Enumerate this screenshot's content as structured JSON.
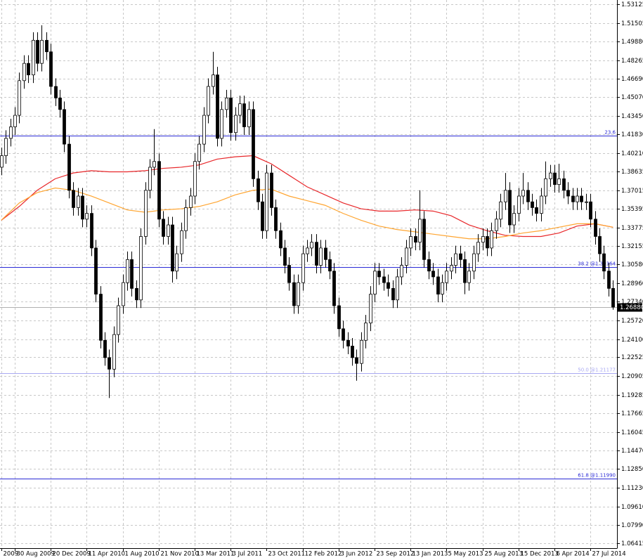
{
  "chart_data": {
    "type": "candlestick",
    "xlim": [
      -0.28,
      136.9
    ],
    "ylim": [
      1.0599,
      1.5349
    ],
    "grid": true,
    "bull_color": "#ffffff",
    "bear_color": "#000000",
    "xticks": [
      {
        "value": 0,
        "label": "2009"
      },
      {
        "value": 3,
        "label": "30 Aug 2009"
      },
      {
        "value": 11,
        "label": "20 Dec 2009"
      },
      {
        "value": 19,
        "label": "11 Apr 2010"
      },
      {
        "value": 27,
        "label": "1 Aug 2010"
      },
      {
        "value": 35,
        "label": "21 Nov 2010"
      },
      {
        "value": 43,
        "label": "13 Mar 2011"
      },
      {
        "value": 51,
        "label": "3 Jul 2011"
      },
      {
        "value": 59,
        "label": "23 Oct 2011"
      },
      {
        "value": 67,
        "label": "12 Feb 2012"
      },
      {
        "value": 75,
        "label": "3 Jun 2012"
      },
      {
        "value": 83,
        "label": "23 Sep 2012"
      },
      {
        "value": 91,
        "label": "13 Jan 2013"
      },
      {
        "value": 99,
        "label": "5 May 2013"
      },
      {
        "value": 107,
        "label": "25 Aug 2013"
      },
      {
        "value": 115,
        "label": "15 Dec 2013"
      },
      {
        "value": 123,
        "label": "6 Apr 2014"
      },
      {
        "value": 131,
        "label": "27 Jul 2014"
      }
    ],
    "yticks": [
      1.53125,
      1.51505,
      {
        "value": 1.4988,
        "label": "1.49880"
      },
      1.48265,
      {
        "value": 1.4669,
        "label": "1.46690"
      },
      {
        "value": 1.4507,
        "label": "1.45070"
      },
      {
        "value": 1.4345,
        "label": "1.43450"
      },
      {
        "value": 1.4183,
        "label": "1.41830"
      },
      {
        "value": 1.4021,
        "label": "1.40210"
      },
      1.38635,
      1.37015,
      1.35395,
      1.33775,
      1.32155,
      {
        "value": 1.3058,
        "label": "1.30580"
      },
      {
        "value": 1.2896,
        "label": "1.28960"
      },
      {
        "value": 1.2734,
        "label": "1.27340"
      },
      {
        "value": 1.2572,
        "label": "1.25720"
      },
      {
        "value": 1.241,
        "label": "1.24100"
      },
      1.22525,
      1.20905,
      1.19285,
      1.17665,
      1.16045,
      {
        "value": 1.1447,
        "label": "1.14470"
      },
      {
        "value": 1.1285,
        "label": "1.12850"
      },
      {
        "value": 1.1123,
        "label": "1.11230"
      },
      {
        "value": 1.0961,
        "label": "1.09610"
      },
      {
        "value": 1.0799,
        "label": "1.07990"
      },
      1.06415
    ],
    "candles": {
      "open": [
        1.39,
        1.4,
        1.415,
        1.425,
        1.435,
        1.465,
        1.48,
        1.47,
        1.5,
        1.48,
        1.5,
        1.49,
        1.46,
        1.45,
        1.44,
        1.41,
        1.37,
        1.355,
        1.365,
        1.345,
        1.35,
        1.32,
        1.28,
        1.24,
        1.225,
        1.215,
        1.245,
        1.27,
        1.29,
        1.31,
        1.285,
        1.275,
        1.33,
        1.37,
        1.39,
        1.395,
        1.345,
        1.33,
        1.34,
        1.3,
        1.315,
        1.335,
        1.355,
        1.365,
        1.395,
        1.41,
        1.435,
        1.46,
        1.47,
        1.415,
        1.44,
        1.45,
        1.42,
        1.435,
        1.445,
        1.425,
        1.44,
        1.38,
        1.36,
        1.335,
        1.385,
        1.355,
        1.335,
        1.32,
        1.305,
        1.29,
        1.27,
        1.29,
        1.315,
        1.32,
        1.325,
        1.305,
        1.32,
        1.31,
        1.3,
        1.27,
        1.25,
        1.24,
        1.235,
        1.225,
        1.22,
        1.24,
        1.255,
        1.28,
        1.3,
        1.295,
        1.29,
        1.285,
        1.275,
        1.295,
        1.305,
        1.32,
        1.33,
        1.325,
        1.345,
        1.31,
        1.3,
        1.295,
        1.28,
        1.29,
        1.3,
        1.305,
        1.315,
        1.31,
        1.29,
        1.3,
        1.315,
        1.325,
        1.33,
        1.32,
        1.335,
        1.345,
        1.36,
        1.37,
        1.34,
        1.35,
        1.365,
        1.37,
        1.36,
        1.355,
        1.35,
        1.365,
        1.38,
        1.385,
        1.375,
        1.38,
        1.37,
        1.365,
        1.36,
        1.365,
        1.36,
        1.36,
        1.345,
        1.33,
        1.315,
        1.3,
        1.285
      ],
      "high": [
        1.407,
        1.422,
        1.432,
        1.442,
        1.472,
        1.487,
        1.487,
        1.507,
        1.507,
        1.513,
        1.507,
        1.497,
        1.467,
        1.457,
        1.447,
        1.417,
        1.377,
        1.372,
        1.372,
        1.357,
        1.357,
        1.327,
        1.287,
        1.247,
        1.232,
        1.252,
        1.277,
        1.297,
        1.317,
        1.317,
        1.292,
        1.337,
        1.377,
        1.397,
        1.423,
        1.402,
        1.352,
        1.347,
        1.347,
        1.322,
        1.342,
        1.362,
        1.372,
        1.402,
        1.417,
        1.442,
        1.467,
        1.49,
        1.477,
        1.447,
        1.457,
        1.457,
        1.442,
        1.452,
        1.452,
        1.447,
        1.447,
        1.387,
        1.367,
        1.392,
        1.392,
        1.362,
        1.342,
        1.327,
        1.312,
        1.297,
        1.297,
        1.322,
        1.327,
        1.332,
        1.332,
        1.327,
        1.327,
        1.317,
        1.307,
        1.277,
        1.257,
        1.247,
        1.242,
        1.232,
        1.247,
        1.262,
        1.287,
        1.307,
        1.307,
        1.302,
        1.297,
        1.292,
        1.302,
        1.312,
        1.327,
        1.337,
        1.337,
        1.37,
        1.352,
        1.317,
        1.307,
        1.302,
        1.297,
        1.307,
        1.312,
        1.322,
        1.322,
        1.317,
        1.307,
        1.322,
        1.332,
        1.337,
        1.337,
        1.342,
        1.352,
        1.367,
        1.385,
        1.377,
        1.357,
        1.372,
        1.385,
        1.377,
        1.367,
        1.362,
        1.372,
        1.395,
        1.392,
        1.392,
        1.393,
        1.387,
        1.377,
        1.372,
        1.372,
        1.372,
        1.367,
        1.367,
        1.352,
        1.337,
        1.322,
        1.307,
        1.292
      ],
      "low": [
        1.383,
        1.393,
        1.408,
        1.418,
        1.428,
        1.458,
        1.463,
        1.463,
        1.473,
        1.473,
        1.483,
        1.453,
        1.443,
        1.433,
        1.403,
        1.363,
        1.348,
        1.348,
        1.338,
        1.338,
        1.313,
        1.273,
        1.233,
        1.218,
        1.19,
        1.208,
        1.238,
        1.263,
        1.283,
        1.278,
        1.268,
        1.268,
        1.323,
        1.363,
        1.383,
        1.338,
        1.323,
        1.323,
        1.29,
        1.293,
        1.308,
        1.328,
        1.348,
        1.358,
        1.388,
        1.403,
        1.428,
        1.453,
        1.408,
        1.408,
        1.433,
        1.413,
        1.413,
        1.428,
        1.418,
        1.418,
        1.373,
        1.353,
        1.328,
        1.328,
        1.348,
        1.328,
        1.313,
        1.298,
        1.283,
        1.263,
        1.263,
        1.283,
        1.308,
        1.313,
        1.298,
        1.298,
        1.303,
        1.293,
        1.263,
        1.243,
        1.233,
        1.228,
        1.218,
        1.205,
        1.213,
        1.233,
        1.248,
        1.273,
        1.288,
        1.283,
        1.278,
        1.268,
        1.268,
        1.288,
        1.298,
        1.313,
        1.318,
        1.318,
        1.303,
        1.293,
        1.288,
        1.273,
        1.273,
        1.283,
        1.293,
        1.298,
        1.303,
        1.28,
        1.283,
        1.293,
        1.308,
        1.318,
        1.313,
        1.313,
        1.328,
        1.338,
        1.353,
        1.333,
        1.333,
        1.343,
        1.358,
        1.353,
        1.348,
        1.343,
        1.343,
        1.358,
        1.373,
        1.368,
        1.368,
        1.363,
        1.358,
        1.353,
        1.353,
        1.353,
        1.353,
        1.338,
        1.323,
        1.308,
        1.293,
        1.278,
        1.2665
      ],
      "close": [
        1.4,
        1.415,
        1.425,
        1.435,
        1.465,
        1.48,
        1.47,
        1.5,
        1.48,
        1.5,
        1.49,
        1.46,
        1.45,
        1.44,
        1.41,
        1.37,
        1.355,
        1.365,
        1.345,
        1.35,
        1.32,
        1.28,
        1.24,
        1.225,
        1.215,
        1.245,
        1.27,
        1.29,
        1.31,
        1.285,
        1.275,
        1.33,
        1.37,
        1.39,
        1.395,
        1.345,
        1.33,
        1.34,
        1.3,
        1.315,
        1.335,
        1.355,
        1.365,
        1.395,
        1.41,
        1.435,
        1.46,
        1.47,
        1.415,
        1.44,
        1.45,
        1.42,
        1.435,
        1.445,
        1.425,
        1.44,
        1.38,
        1.36,
        1.335,
        1.385,
        1.355,
        1.335,
        1.32,
        1.305,
        1.29,
        1.27,
        1.29,
        1.315,
        1.32,
        1.325,
        1.305,
        1.32,
        1.31,
        1.3,
        1.27,
        1.25,
        1.24,
        1.235,
        1.225,
        1.22,
        1.24,
        1.255,
        1.28,
        1.3,
        1.295,
        1.29,
        1.285,
        1.275,
        1.295,
        1.305,
        1.32,
        1.33,
        1.325,
        1.345,
        1.31,
        1.3,
        1.295,
        1.28,
        1.29,
        1.3,
        1.305,
        1.315,
        1.31,
        1.29,
        1.3,
        1.315,
        1.325,
        1.33,
        1.32,
        1.335,
        1.345,
        1.36,
        1.37,
        1.34,
        1.35,
        1.365,
        1.37,
        1.36,
        1.355,
        1.35,
        1.365,
        1.38,
        1.385,
        1.375,
        1.38,
        1.37,
        1.365,
        1.36,
        1.365,
        1.36,
        1.36,
        1.345,
        1.33,
        1.315,
        1.3,
        1.285,
        1.2688
      ]
    },
    "lines_x": [
      0,
      4,
      8,
      12,
      16,
      20,
      24,
      28,
      32,
      36,
      40,
      44,
      48,
      52,
      56,
      60,
      64,
      68,
      72,
      76,
      80,
      84,
      88,
      92,
      96,
      100,
      104,
      108,
      112,
      116,
      120,
      124,
      128,
      132,
      136
    ],
    "lines": [
      {
        "color": "#e8272a",
        "values": [
          1.344,
          1.356,
          1.37,
          1.38,
          1.385,
          1.387,
          1.386,
          1.386,
          1.387,
          1.389,
          1.39,
          1.392,
          1.397,
          1.399,
          1.4,
          1.393,
          1.383,
          1.373,
          1.366,
          1.359,
          1.354,
          1.352,
          1.352,
          1.353,
          1.352,
          1.348,
          1.34,
          1.335,
          1.331,
          1.33,
          1.33,
          1.333,
          1.339,
          1.341,
          1.338
        ]
      },
      {
        "color": "#ffa531",
        "values": [
          1.344,
          1.359,
          1.368,
          1.372,
          1.37,
          1.365,
          1.359,
          1.353,
          1.351,
          1.353,
          1.354,
          1.356,
          1.36,
          1.366,
          1.37,
          1.371,
          1.365,
          1.361,
          1.357,
          1.35,
          1.344,
          1.339,
          1.336,
          1.334,
          1.332,
          1.33,
          1.328,
          1.328,
          1.33,
          1.333,
          1.335,
          1.338,
          1.341,
          1.341,
          1.338
        ]
      }
    ],
    "levels": [
      {
        "value": 1.41731,
        "label": "23.6",
        "color": "#2b2bd6"
      },
      {
        "value": 1.30364,
        "label": "38.2 @1.30364",
        "color": "#2b2bd6"
      },
      {
        "value": 1.21177,
        "label": "50.0 @1.21177",
        "color": "#a9a9f2"
      },
      {
        "value": 1.1199,
        "label": "61.8 @1.11990",
        "color": "#2b2bd6"
      }
    ],
    "last_price": {
      "value": 1.2688,
      "label": "1.26880"
    }
  }
}
